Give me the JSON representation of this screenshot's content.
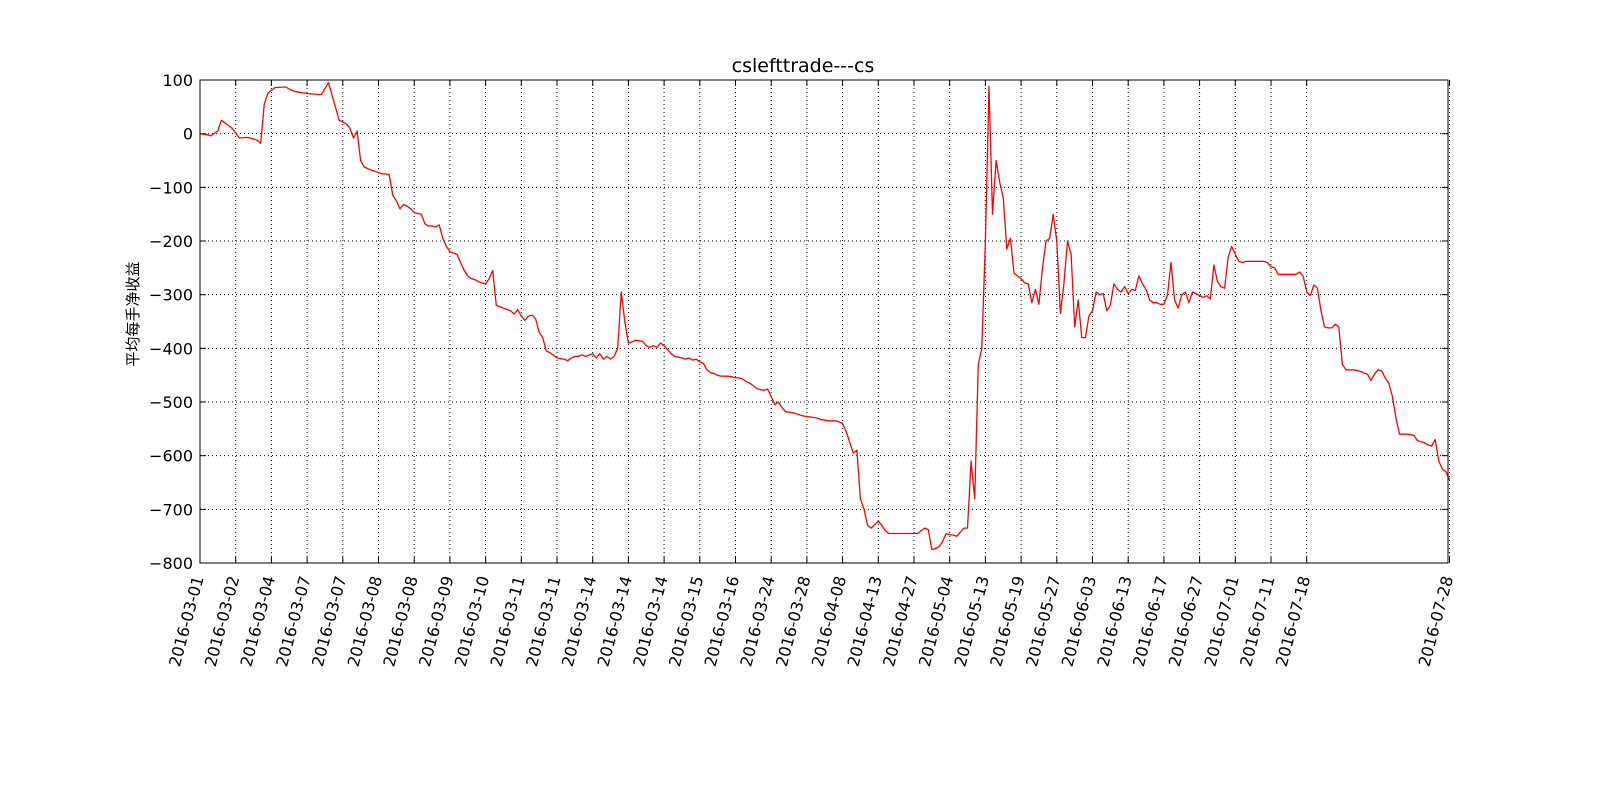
{
  "chart_data": {
    "type": "line",
    "title": "cslefttrade---cs",
    "xlabel": "",
    "ylabel": "平均每手净收益",
    "ylim": [
      -800,
      100
    ],
    "yticks": [
      100,
      0,
      -100,
      -200,
      -300,
      -400,
      -500,
      -600,
      -700,
      -800
    ],
    "ytick_labels": [
      "100",
      "0",
      "−100",
      "−200",
      "−300",
      "−400",
      "−500",
      "−600",
      "−700",
      "−800"
    ],
    "x_tick_index_step": 10,
    "x_index_max": 350,
    "xticks": [
      "2016-03-01",
      "2016-03-02",
      "2016-03-04",
      "2016-03-07",
      "2016-03-07",
      "2016-03-08",
      "2016-03-08",
      "2016-03-09",
      "2016-03-10",
      "2016-03-11",
      "2016-03-11",
      "2016-03-14",
      "2016-03-14",
      "2016-03-14",
      "2016-03-15",
      "2016-03-16",
      "2016-03-24",
      "2016-03-28",
      "2016-04-08",
      "2016-04-13",
      "2016-04-27",
      "2016-05-04",
      "2016-05-13",
      "2016-05-19",
      "2016-05-27",
      "2016-06-03",
      "2016-06-13",
      "2016-06-17",
      "2016-06-27",
      "2016-07-01",
      "2016-07-11",
      "2016-07-18",
      "2016-07-28"
    ],
    "grid": true,
    "line_color": "#ff0000",
    "series": [
      {
        "x": [
          0,
          2,
          3,
          5,
          6,
          7,
          9,
          11,
          13,
          14,
          15,
          16,
          17,
          18,
          19,
          21,
          24,
          25,
          26,
          27,
          28,
          29,
          30,
          31,
          32,
          33,
          34,
          36,
          39,
          40,
          41,
          42,
          43,
          44,
          45,
          46,
          47,
          48,
          49,
          51,
          52,
          53,
          54,
          55,
          56,
          57,
          58,
          59,
          60,
          62,
          63,
          64,
          65,
          66,
          67,
          68,
          69,
          70,
          72,
          74,
          75,
          76,
          77,
          78,
          79,
          80,
          81,
          82,
          83,
          85,
          87,
          88,
          89,
          90,
          91,
          92,
          93,
          94,
          95,
          96,
          97,
          98,
          100,
          102,
          103,
          104,
          105,
          106,
          107,
          108,
          110,
          111,
          112,
          113,
          114,
          115,
          116,
          117,
          118,
          119,
          120,
          121,
          122,
          124,
          125,
          126,
          127,
          128,
          129,
          130,
          132,
          133,
          135,
          136,
          137,
          138,
          139,
          140,
          141,
          142,
          143,
          144,
          145,
          146,
          148,
          149,
          150,
          151,
          152,
          153,
          154,
          155,
          156,
          157,
          158,
          159,
          160,
          161,
          162,
          163,
          164,
          166,
          167,
          168,
          169,
          171,
          173,
          174,
          175,
          176,
          177,
          178,
          179,
          180,
          181,
          182,
          183,
          184,
          185,
          186,
          187,
          188,
          190,
          191,
          192,
          193,
          194,
          195,
          196,
          197,
          198,
          199,
          200,
          201,
          203,
          204,
          205,
          206,
          207,
          208,
          209,
          210,
          211,
          212,
          213,
          214,
          215,
          216,
          217,
          218,
          219,
          220,
          221,
          222,
          223,
          224,
          225,
          226,
          227,
          228,
          229,
          230,
          231,
          232,
          233,
          234,
          235,
          236,
          237,
          238,
          239,
          240,
          241,
          242,
          243,
          244,
          245,
          246,
          247,
          248,
          249,
          250,
          251,
          252,
          253,
          254,
          255,
          256,
          257,
          258,
          259,
          260,
          261,
          262,
          263,
          264,
          265,
          266,
          267,
          268,
          269,
          270,
          271,
          272,
          273,
          274,
          275,
          276,
          277,
          278,
          279,
          280,
          281,
          282,
          283,
          284,
          285,
          286,
          287,
          288,
          289,
          290,
          291,
          292,
          293,
          294,
          295,
          296,
          297,
          298,
          299,
          300,
          301,
          302,
          303,
          304,
          305,
          306,
          307,
          308,
          309,
          310,
          311,
          312,
          313,
          314,
          315,
          316,
          317,
          318,
          319,
          320,
          321,
          322,
          323,
          324,
          325,
          326,
          327,
          328,
          329,
          330,
          331,
          332,
          333,
          334,
          335,
          336,
          337,
          338,
          339,
          340,
          341,
          342,
          343,
          344,
          345,
          346,
          347,
          348,
          349,
          350
        ],
        "values": [
          0,
          -2,
          -4,
          5,
          25,
          20,
          10,
          -8,
          -7,
          -8,
          -10,
          -12,
          -18,
          55,
          75,
          86,
          87,
          83,
          80,
          78,
          77,
          76,
          75,
          74,
          74,
          73,
          73,
          95,
          25,
          22,
          18,
          10,
          -8,
          5,
          -50,
          -62,
          -65,
          -68,
          -70,
          -75,
          -75,
          -76,
          -115,
          -125,
          -140,
          -132,
          -135,
          -140,
          -147,
          -150,
          -168,
          -172,
          -172,
          -174,
          -170,
          -195,
          -210,
          -220,
          -225,
          -255,
          -265,
          -270,
          -272,
          -276,
          -278,
          -280,
          -270,
          -255,
          -320,
          -325,
          -330,
          -336,
          -328,
          -340,
          -348,
          -340,
          -338,
          -345,
          -370,
          -380,
          -405,
          -408,
          -418,
          -420,
          -423,
          -418,
          -415,
          -415,
          -412,
          -415,
          -410,
          -418,
          -410,
          -420,
          -415,
          -420,
          -415,
          -400,
          -295,
          -350,
          -390,
          -388,
          -385,
          -387,
          -395,
          -398,
          -395,
          -398,
          -390,
          -395,
          -410,
          -415,
          -418,
          -420,
          -418,
          -422,
          -420,
          -425,
          -428,
          -440,
          -445,
          -447,
          -450,
          -452,
          -452,
          -453,
          -455,
          -455,
          -457,
          -462,
          -465,
          -470,
          -475,
          -477,
          -478,
          -476,
          -490,
          -505,
          -500,
          -510,
          -518,
          -520,
          -522,
          -524,
          -526,
          -528,
          -530,
          -533,
          -534,
          -535,
          -535,
          -535,
          -537,
          -540,
          -555,
          -575,
          -595,
          -590,
          -680,
          -700,
          -730,
          -735,
          -722,
          -730,
          -740,
          -745,
          -745,
          -745,
          -745,
          -745,
          -745,
          -745,
          -745,
          -745,
          -735,
          -738,
          -775,
          -773,
          -770,
          -760,
          -745,
          -747,
          -748,
          -750,
          -742,
          -735,
          -735,
          -610,
          -680,
          -430,
          -400,
          -200,
          88,
          -150,
          -50,
          -90,
          -120,
          -215,
          -195,
          -260,
          -265,
          -270,
          -278,
          -280,
          -315,
          -290,
          -318,
          -250,
          -200,
          -195,
          -150,
          -200,
          -335,
          -280,
          -200,
          -225,
          -360,
          -310,
          -380,
          -380,
          -340,
          -330,
          -295,
          -300,
          -298,
          -330,
          -320,
          -280,
          -290,
          -295,
          -285,
          -298,
          -290,
          -292,
          -265,
          -280,
          -290,
          -310,
          -315,
          -315,
          -318,
          -318,
          -300,
          -240,
          -310,
          -325,
          -300,
          -295,
          -315,
          -295,
          -298,
          -302,
          -305,
          -302,
          -308,
          -245,
          -275,
          -285,
          -288,
          -230,
          -210,
          -225,
          -238,
          -240,
          -238,
          -238,
          -238,
          -238,
          -238,
          -238,
          -240,
          -248,
          -250,
          -262,
          -262,
          -262,
          -262,
          -262,
          -262,
          -258,
          -265,
          -295,
          -302,
          -282,
          -288,
          -330,
          -360,
          -362,
          -362,
          -355,
          -360,
          -430,
          -440,
          -440,
          -440,
          -441,
          -443,
          -446,
          -448,
          -460,
          -448,
          -440,
          -442,
          -455,
          -465,
          -490,
          -530,
          -560,
          -560,
          -560,
          -561,
          -562,
          -572,
          -574,
          -576,
          -580,
          -582,
          -570,
          -610,
          -625,
          -630,
          -645
        ]
      }
    ]
  }
}
